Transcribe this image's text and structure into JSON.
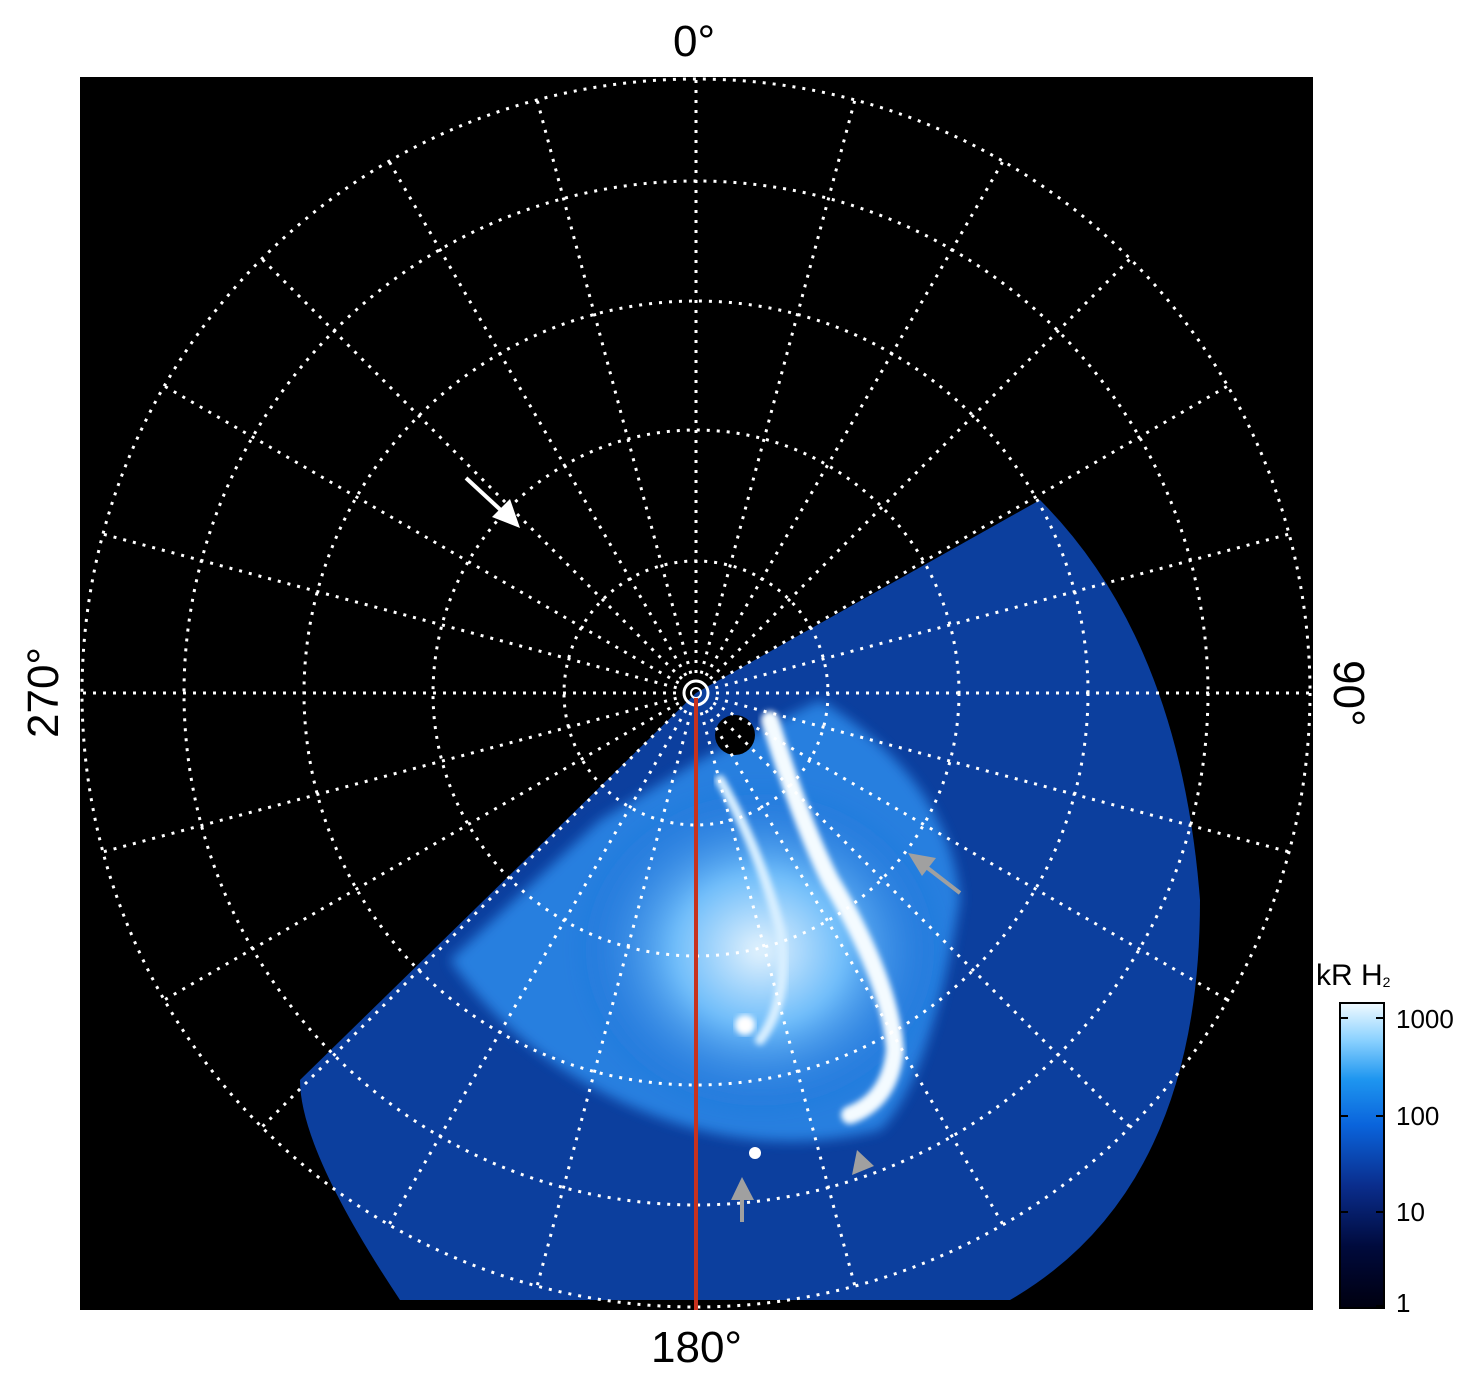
{
  "axis_labels": {
    "top": "0°",
    "right": "90°",
    "bottom": "180°",
    "left": "270°"
  },
  "colorbar": {
    "title_main": "kR H",
    "title_sub": "2",
    "ticks": [
      "1000",
      "100",
      "10",
      "1"
    ],
    "colors": [
      "#000010",
      "#000a3c",
      "#0a2d8c",
      "#0a64dc",
      "#1e96f0",
      "#8cd2ff",
      "#f0faff"
    ]
  },
  "colors": {
    "background": "#000000",
    "grid": "#ffffff",
    "meridian_line": "#c8321e",
    "pointer_white": "#ffffff",
    "pointer_gray": "#a0a0a0"
  }
}
